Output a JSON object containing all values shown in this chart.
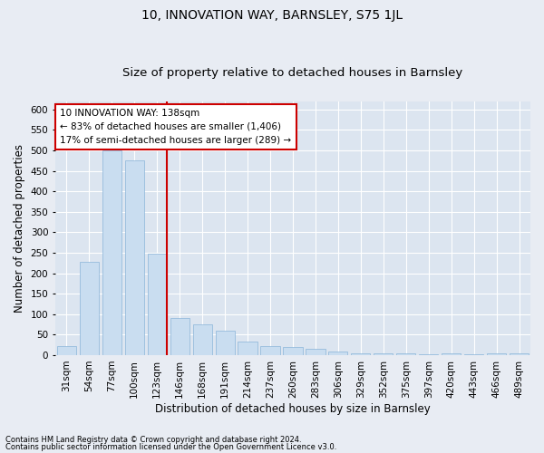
{
  "title": "10, INNOVATION WAY, BARNSLEY, S75 1JL",
  "subtitle": "Size of property relative to detached houses in Barnsley",
  "xlabel": "Distribution of detached houses by size in Barnsley",
  "ylabel": "Number of detached properties",
  "footnote1": "Contains HM Land Registry data © Crown copyright and database right 2024.",
  "footnote2": "Contains public sector information licensed under the Open Government Licence v3.0.",
  "categories": [
    "31sqm",
    "54sqm",
    "77sqm",
    "100sqm",
    "123sqm",
    "146sqm",
    "168sqm",
    "191sqm",
    "214sqm",
    "237sqm",
    "260sqm",
    "283sqm",
    "306sqm",
    "329sqm",
    "352sqm",
    "375sqm",
    "397sqm",
    "420sqm",
    "443sqm",
    "466sqm",
    "489sqm"
  ],
  "values": [
    22,
    228,
    500,
    475,
    248,
    90,
    75,
    60,
    32,
    22,
    20,
    16,
    8,
    5,
    4,
    4,
    3,
    4,
    3,
    4,
    5
  ],
  "bar_color": "#c9ddf0",
  "bar_edge_color": "#8ab4d8",
  "highlight_idx": 4,
  "highlight_color": "#cc0000",
  "annotation_line1": "10 INNOVATION WAY: 138sqm",
  "annotation_line2": "← 83% of detached houses are smaller (1,406)",
  "annotation_line3": "17% of semi-detached houses are larger (289) →",
  "annotation_box_color": "#ffffff",
  "annotation_box_edge": "#cc0000",
  "ylim": [
    0,
    620
  ],
  "yticks": [
    0,
    50,
    100,
    150,
    200,
    250,
    300,
    350,
    400,
    450,
    500,
    550,
    600
  ],
  "background_color": "#e8ecf3",
  "plot_bg_color": "#dce5f0",
  "grid_color": "#ffffff",
  "title_fontsize": 10,
  "subtitle_fontsize": 9.5,
  "tick_fontsize": 7.5,
  "label_fontsize": 8.5,
  "footnote_fontsize": 6.0
}
